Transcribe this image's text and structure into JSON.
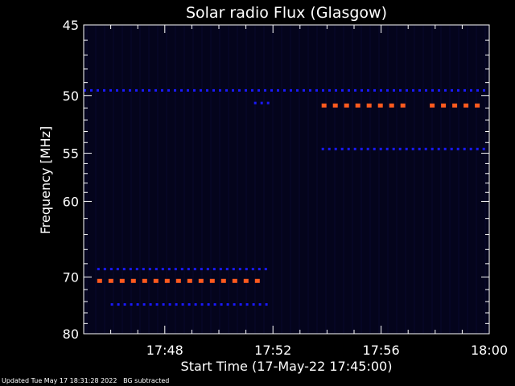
{
  "chart_data": {
    "type": "heatmap",
    "title": "Solar radio Flux (Glasgow)",
    "xlabel": "Start Time (17-May-22 17:45:00)",
    "ylabel": "Frequency [MHz]",
    "x_tick_labels": [
      "17:48",
      "17:52",
      "17:56",
      "18:00"
    ],
    "x_ticks_minutes_after_start": [
      3,
      7,
      11,
      15
    ],
    "xlim_minutes_after_start": [
      0,
      15
    ],
    "y_tick_labels": [
      "45",
      "50",
      "55",
      "60",
      "70",
      "80"
    ],
    "y_ticks": [
      45,
      50,
      55,
      60,
      70,
      80
    ],
    "ylim": [
      45,
      80
    ],
    "y_inverted": true,
    "grid": false,
    "colors": {
      "background": "#000000",
      "spectrogram_base": "#04041c",
      "weak_emission": "#1a1aff",
      "strong_emission": "#ff5a1e",
      "axes": "#ffffff"
    },
    "emission_bands": [
      {
        "frequency_mhz": 49.6,
        "start_min": 0.0,
        "end_min": 15.0,
        "intensity": "weak"
      },
      {
        "frequency_mhz": 50.6,
        "start_min": 6.3,
        "end_min": 7.0,
        "intensity": "weak"
      },
      {
        "frequency_mhz": 50.8,
        "start_min": 8.8,
        "end_min": 11.9,
        "intensity": "strong"
      },
      {
        "frequency_mhz": 50.8,
        "start_min": 12.8,
        "end_min": 15.0,
        "intensity": "strong"
      },
      {
        "frequency_mhz": 54.6,
        "start_min": 8.8,
        "end_min": 15.0,
        "intensity": "weak"
      },
      {
        "frequency_mhz": 68.8,
        "start_min": 0.5,
        "end_min": 6.8,
        "intensity": "weak"
      },
      {
        "frequency_mhz": 70.6,
        "start_min": 0.5,
        "end_min": 6.8,
        "intensity": "strong"
      },
      {
        "frequency_mhz": 74.5,
        "start_min": 1.0,
        "end_min": 6.8,
        "intensity": "weak"
      }
    ]
  },
  "footer": {
    "updated": "Updated Tue May 17 18:31:28 2022",
    "note": "BG subtracted"
  }
}
